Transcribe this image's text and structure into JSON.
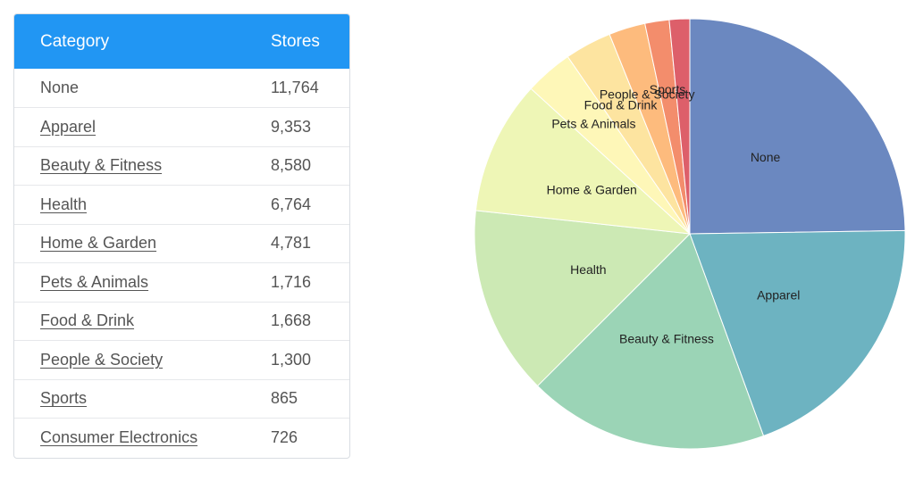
{
  "table": {
    "headers": {
      "category": "Category",
      "stores": "Stores"
    },
    "rows": [
      {
        "category": "None",
        "stores": "11,764",
        "link": false
      },
      {
        "category": "Apparel",
        "stores": "9,353",
        "link": true
      },
      {
        "category": "Beauty & Fitness",
        "stores": "8,580",
        "link": true
      },
      {
        "category": "Health",
        "stores": "6,764",
        "link": true
      },
      {
        "category": "Home & Garden",
        "stores": "4,781",
        "link": true
      },
      {
        "category": "Pets & Animals",
        "stores": "1,716",
        "link": true
      },
      {
        "category": "Food & Drink",
        "stores": "1,668",
        "link": true
      },
      {
        "category": "People & Society",
        "stores": "1,300",
        "link": true
      },
      {
        "category": "Sports",
        "stores": "865",
        "link": true
      },
      {
        "category": "Consumer Electronics",
        "stores": "726",
        "link": true
      }
    ]
  },
  "colors": {
    "header_bg": "#2196f3"
  },
  "chart_data": {
    "type": "pie",
    "categories": [
      "None",
      "Apparel",
      "Beauty & Fitness",
      "Health",
      "Home & Garden",
      "Pets & Animals",
      "Food & Drink",
      "People & Society",
      "Sports",
      "Consumer Electronics"
    ],
    "values": [
      11764,
      9353,
      8580,
      6764,
      4781,
      1716,
      1668,
      1300,
      865,
      726
    ],
    "slice_labels": [
      "None",
      "Apparel",
      "Beauty & Fitness",
      "Health",
      "Home & Garden",
      "Pets & Animals",
      "Food & Drink",
      "People & Society",
      "Sports",
      ""
    ],
    "colors": [
      "#6b88c0",
      "#6db3c1",
      "#9bd4b6",
      "#cce9b4",
      "#eef6b6",
      "#fef7b8",
      "#fde4a0",
      "#fdbb7d",
      "#f38d6c",
      "#dd5f6a"
    ],
    "start": "12 o'clock, clockwise"
  }
}
